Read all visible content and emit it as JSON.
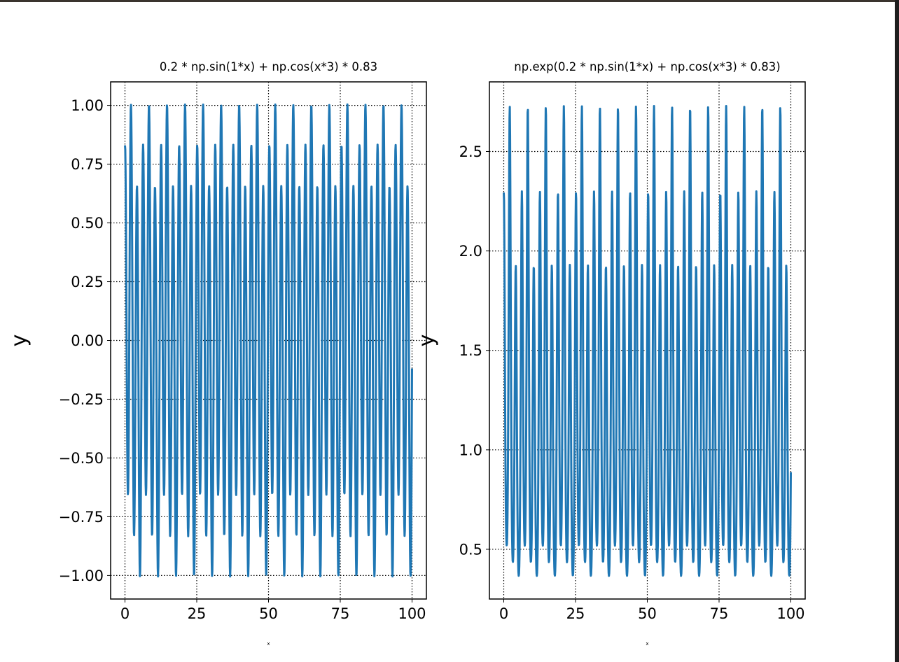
{
  "chart_data": [
    {
      "type": "line",
      "title": "0.2 * np.sin(1*x) + np.cos(x*3) * 0.83",
      "expression": "0.2 * sin(x) + 0.83 * cos(3x)",
      "x_range": [
        0,
        100
      ],
      "xlabel": "x",
      "ylabel": "y",
      "xlim": [
        -5,
        105
      ],
      "ylim": [
        -1.1,
        1.1
      ],
      "xticks": [
        0,
        25,
        50,
        75,
        100
      ],
      "xtick_labels": [
        "0",
        "25",
        "50",
        "75",
        "100"
      ],
      "yticks": [
        -1,
        -0.75,
        -0.5,
        -0.25,
        0,
        0.25,
        0.5,
        0.75,
        1
      ],
      "ytick_labels": [
        "−1.00",
        "−0.75",
        "−0.50",
        "−0.25",
        "0.00",
        "0.25",
        "0.50",
        "0.75",
        "1.00"
      ],
      "grid": true,
      "grid_style": "dotted",
      "line_color": "#1f77b4"
    },
    {
      "type": "line",
      "title": "np.exp(0.2 * np.sin(1*x) + np.cos(x*3) * 0.83)",
      "expression": "exp(0.2 * sin(x) + 0.83 * cos(3x))",
      "x_range": [
        0,
        100
      ],
      "xlabel": "x",
      "ylabel": "y",
      "xlim": [
        -5,
        105
      ],
      "ylim": [
        0.25,
        2.85
      ],
      "xticks": [
        0,
        25,
        50,
        75,
        100
      ],
      "xtick_labels": [
        "0",
        "25",
        "50",
        "75",
        "100"
      ],
      "yticks": [
        0.5,
        1.0,
        1.5,
        2.0,
        2.5
      ],
      "ytick_labels": [
        "0.5",
        "1.0",
        "1.5",
        "2.0",
        "2.5"
      ],
      "grid": true,
      "grid_style": "dotted",
      "line_color": "#1f77b4"
    }
  ]
}
